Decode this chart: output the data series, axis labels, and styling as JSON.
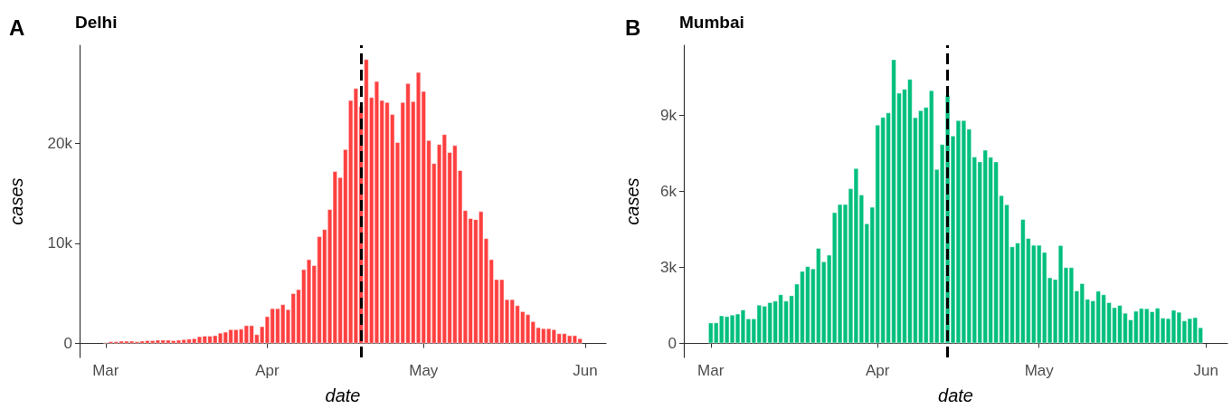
{
  "chart_data": [
    {
      "type": "bar",
      "title": "Delhi",
      "annotations": [
        "A"
      ],
      "xlabel": "date",
      "ylabel": "cases",
      "color": "#ff4040",
      "grid": false,
      "x": [
        "--03-01",
        "--03-02",
        "--03-03",
        "--03-04",
        "--03-05",
        "--03-06",
        "--03-07",
        "--03-08",
        "--03-09",
        "--03-10",
        "--03-11",
        "--03-12",
        "--03-13",
        "--03-14",
        "--03-15",
        "--03-16",
        "--03-17",
        "--03-18",
        "--03-19",
        "--03-20",
        "--03-21",
        "--03-22",
        "--03-23",
        "--03-24",
        "--03-25",
        "--03-26",
        "--03-27",
        "--03-28",
        "--03-29",
        "--03-30",
        "--03-31",
        "--04-01",
        "--04-02",
        "--04-03",
        "--04-04",
        "--04-05",
        "--04-06",
        "--04-07",
        "--04-08",
        "--04-09",
        "--04-10",
        "--04-11",
        "--04-12",
        "--04-13",
        "--04-14",
        "--04-15",
        "--04-16",
        "--04-17",
        "--04-18",
        "--04-19",
        "--04-20",
        "--04-21",
        "--04-22",
        "--04-23",
        "--04-24",
        "--04-25",
        "--04-26",
        "--04-27",
        "--04-28",
        "--04-29",
        "--04-30",
        "--05-01",
        "--05-02",
        "--05-03",
        "--05-04",
        "--05-05",
        "--05-06",
        "--05-07",
        "--05-08",
        "--05-09",
        "--05-10",
        "--05-11",
        "--05-12",
        "--05-13",
        "--05-14",
        "--05-15",
        "--05-16",
        "--05-17",
        "--05-18",
        "--05-19",
        "--05-20",
        "--05-21",
        "--05-22",
        "--05-23",
        "--05-24",
        "--05-25",
        "--05-26",
        "--05-27",
        "--05-28",
        "--05-29",
        "--05-30",
        "--05-31"
      ],
      "values": [
        100,
        200,
        200,
        250,
        250,
        250,
        200,
        250,
        300,
        300,
        350,
        350,
        350,
        300,
        350,
        400,
        450,
        500,
        700,
        750,
        750,
        800,
        1050,
        1150,
        1400,
        1400,
        1450,
        1800,
        1800,
        900,
        1700,
        2700,
        3500,
        3500,
        3900,
        3400,
        5000,
        5400,
        7400,
        8400,
        7800,
        10700,
        11400,
        13400,
        17200,
        16600,
        19400,
        24300,
        25500,
        23700,
        28400,
        24600,
        26200,
        24300,
        24100,
        22900,
        20100,
        24100,
        26000,
        24200,
        27100,
        25200,
        20300,
        18000,
        19900,
        20900,
        19100,
        19800,
        17300,
        13300,
        12500,
        12400,
        13200,
        10500,
        8400,
        6400,
        6400,
        4400,
        4400,
        3800,
        3200,
        2900,
        2200,
        1600,
        1500,
        1500,
        1400,
        1000,
        1000,
        800,
        800,
        500
      ],
      "xlim": [
        "--02-24",
        "--06-05"
      ],
      "xticks": [
        {
          "value": "--03-01",
          "label": "Mar"
        },
        {
          "value": "--04-01",
          "label": "Apr"
        },
        {
          "value": "--05-01",
          "label": "May"
        },
        {
          "value": "--06-01",
          "label": "Jun"
        }
      ],
      "ylim": [
        -1400,
        29800
      ],
      "yticks": [
        0,
        {
          "value": 10000,
          "label": "10k"
        },
        {
          "value": 20000,
          "label": "20k"
        }
      ],
      "ref_lines": [
        {
          "axis": "x",
          "value": "--04-19",
          "color": "#000000",
          "line_style": "dashed"
        }
      ]
    },
    {
      "type": "bar",
      "title": "Mumbai",
      "annotations": [
        "B"
      ],
      "xlabel": "date",
      "ylabel": "cases",
      "color": "#00bf7d",
      "grid": false,
      "x": [
        "--03-01",
        "--03-02",
        "--03-03",
        "--03-04",
        "--03-05",
        "--03-06",
        "--03-07",
        "--03-08",
        "--03-09",
        "--03-10",
        "--03-11",
        "--03-12",
        "--03-13",
        "--03-14",
        "--03-15",
        "--03-16",
        "--03-17",
        "--03-18",
        "--03-19",
        "--03-20",
        "--03-21",
        "--03-22",
        "--03-23",
        "--03-24",
        "--03-25",
        "--03-26",
        "--03-27",
        "--03-28",
        "--03-29",
        "--03-30",
        "--03-31",
        "--04-01",
        "--04-02",
        "--04-03",
        "--04-04",
        "--04-05",
        "--04-06",
        "--04-07",
        "--04-08",
        "--04-09",
        "--04-10",
        "--04-11",
        "--04-12",
        "--04-13",
        "--04-14",
        "--04-15",
        "--04-16",
        "--04-17",
        "--04-18",
        "--04-19",
        "--04-20",
        "--04-21",
        "--04-22",
        "--04-23",
        "--04-24",
        "--04-25",
        "--04-26",
        "--04-27",
        "--04-28",
        "--04-29",
        "--04-30",
        "--05-01",
        "--05-02",
        "--05-03",
        "--05-04",
        "--05-05",
        "--05-06",
        "--05-07",
        "--05-08",
        "--05-09",
        "--05-10",
        "--05-11",
        "--05-12",
        "--05-13",
        "--05-14",
        "--05-15",
        "--05-16",
        "--05-17",
        "--05-18",
        "--05-19",
        "--05-20",
        "--05-21",
        "--05-22",
        "--05-23",
        "--05-24",
        "--05-25",
        "--05-26",
        "--05-27",
        "--05-28",
        "--05-29",
        "--05-30",
        "--05-31"
      ],
      "values": [
        810,
        810,
        1090,
        1060,
        1120,
        1160,
        1320,
        970,
        970,
        1510,
        1470,
        1610,
        1670,
        1920,
        1670,
        1880,
        2340,
        2840,
        3030,
        2940,
        3750,
        3220,
        3480,
        5160,
        5480,
        5480,
        6100,
        6900,
        5850,
        4720,
        5370,
        8610,
        8910,
        9090,
        11190,
        9870,
        10020,
        10410,
        8900,
        9180,
        9310,
        9970,
        6860,
        7840,
        9790,
        8180,
        8790,
        8790,
        8450,
        7350,
        7160,
        7620,
        7340,
        7160,
        5830,
        5470,
        3810,
        3960,
        4890,
        4140,
        3870,
        3870,
        3590,
        2590,
        2520,
        3860,
        2990,
        2990,
        2070,
        2360,
        1740,
        1680,
        2060,
        1920,
        1610,
        1410,
        1500,
        1190,
        930,
        1270,
        1380,
        1370,
        1250,
        1390,
        1000,
        980,
        1310,
        1230,
        890,
        980,
        1020,
        620
      ],
      "xlim": [
        "--02-24",
        "--06-05"
      ],
      "xticks": [
        {
          "value": "--03-01",
          "label": "Mar"
        },
        {
          "value": "--04-01",
          "label": "Apr"
        },
        {
          "value": "--05-01",
          "label": "May"
        },
        {
          "value": "--06-01",
          "label": "Jun"
        }
      ],
      "ylim": [
        -560,
        11750
      ],
      "yticks": [
        0,
        {
          "value": 3000,
          "label": "3k"
        },
        {
          "value": 6000,
          "label": "6k"
        },
        {
          "value": 9000,
          "label": "9k"
        }
      ],
      "ref_lines": [
        {
          "axis": "x",
          "value": "--04-14",
          "color": "#000000",
          "line_style": "dashed"
        }
      ]
    }
  ]
}
